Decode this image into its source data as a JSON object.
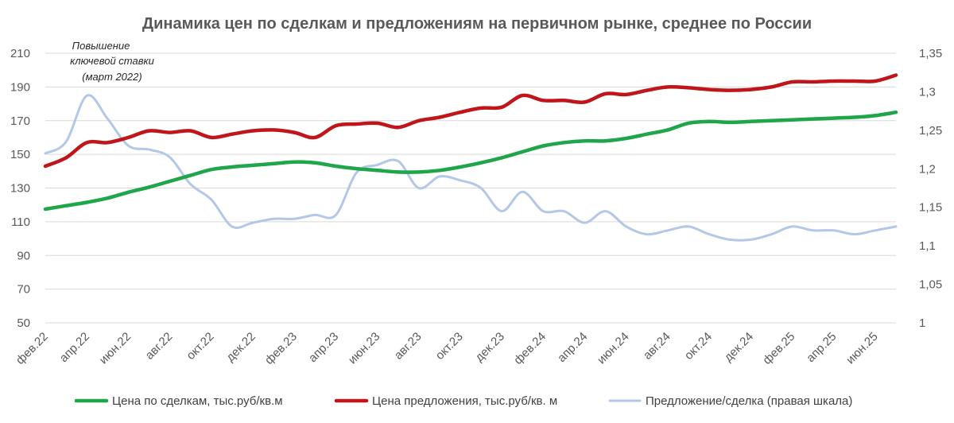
{
  "chart_data": {
    "type": "line",
    "title": "Динамика цен по сделкам и предложениям на первичном рынке, среднее по России",
    "annotation": [
      "Повышение",
      "ключевой ставки",
      "(март 2022)"
    ],
    "x_tick_labels": [
      "фев.22",
      "апр.22",
      "июн.22",
      "авг.22",
      "окт.22",
      "дек.22",
      "фев.23",
      "апр.23",
      "июн.23",
      "авг.23",
      "окт.23",
      "дек.23",
      "фев.24",
      "апр.24",
      "июн.24",
      "авг.24",
      "окт.24",
      "дек.24",
      "фев.25",
      "апр.25",
      "июн.25"
    ],
    "x_points": 42,
    "y_left": {
      "min": 50,
      "max": 210,
      "ticks": [
        50,
        70,
        90,
        110,
        130,
        150,
        170,
        190,
        210
      ],
      "tick_labels": [
        "50",
        "70",
        "90",
        "110",
        "130",
        "150",
        "170",
        "190",
        "210"
      ]
    },
    "y_right": {
      "min": 1,
      "max": 1.35,
      "ticks": [
        1,
        1.05,
        1.1,
        1.15,
        1.2,
        1.25,
        1.3,
        1.35
      ],
      "tick_labels": [
        "1",
        "1,05",
        "1,1",
        "1,15",
        "1,2",
        "1,25",
        "1,3",
        "1,35"
      ]
    },
    "grid": true,
    "legend_position": "bottom",
    "series": [
      {
        "name": "Цена по сделкам, тыс.руб/кв.м",
        "axis": "left",
        "color": "#1fa54a",
        "values": [
          117.5,
          119.5,
          121.5,
          124,
          127.5,
          130.5,
          134,
          137.5,
          141,
          142.5,
          143.5,
          144.5,
          145.5,
          145,
          143,
          141.5,
          140.5,
          139.5,
          139.5,
          140.5,
          142.5,
          145,
          148,
          151.5,
          155,
          157,
          158,
          158,
          159.5,
          162,
          164.5,
          168.5,
          169.5,
          169,
          169.5,
          170,
          170.5,
          171,
          171.5,
          172,
          173,
          175
        ]
      },
      {
        "name": "Цена предложения, тыс.руб/кв. м",
        "axis": "left",
        "color": "#c0161b",
        "values": [
          143,
          148,
          157,
          157,
          160,
          164,
          163,
          164,
          160,
          162,
          164,
          164.5,
          163,
          160,
          167,
          168,
          168.5,
          166,
          170,
          172,
          175,
          177.5,
          178,
          185,
          182,
          182,
          181,
          186,
          185.5,
          188,
          190,
          189.5,
          188.5,
          188,
          188.5,
          190,
          193,
          193,
          193.5,
          193.5,
          193.5,
          197
        ]
      },
      {
        "name": "Предложение/сделка (правая шкала)",
        "axis": "right",
        "color": "#b4c7e7",
        "values": [
          1.22,
          1.235,
          1.295,
          1.265,
          1.23,
          1.225,
          1.215,
          1.18,
          1.16,
          1.125,
          1.13,
          1.135,
          1.135,
          1.14,
          1.14,
          1.195,
          1.205,
          1.21,
          1.175,
          1.19,
          1.185,
          1.175,
          1.145,
          1.17,
          1.145,
          1.145,
          1.13,
          1.145,
          1.125,
          1.115,
          1.12,
          1.125,
          1.115,
          1.108,
          1.108,
          1.115,
          1.125,
          1.12,
          1.12,
          1.115,
          1.12,
          1.125
        ]
      }
    ]
  }
}
